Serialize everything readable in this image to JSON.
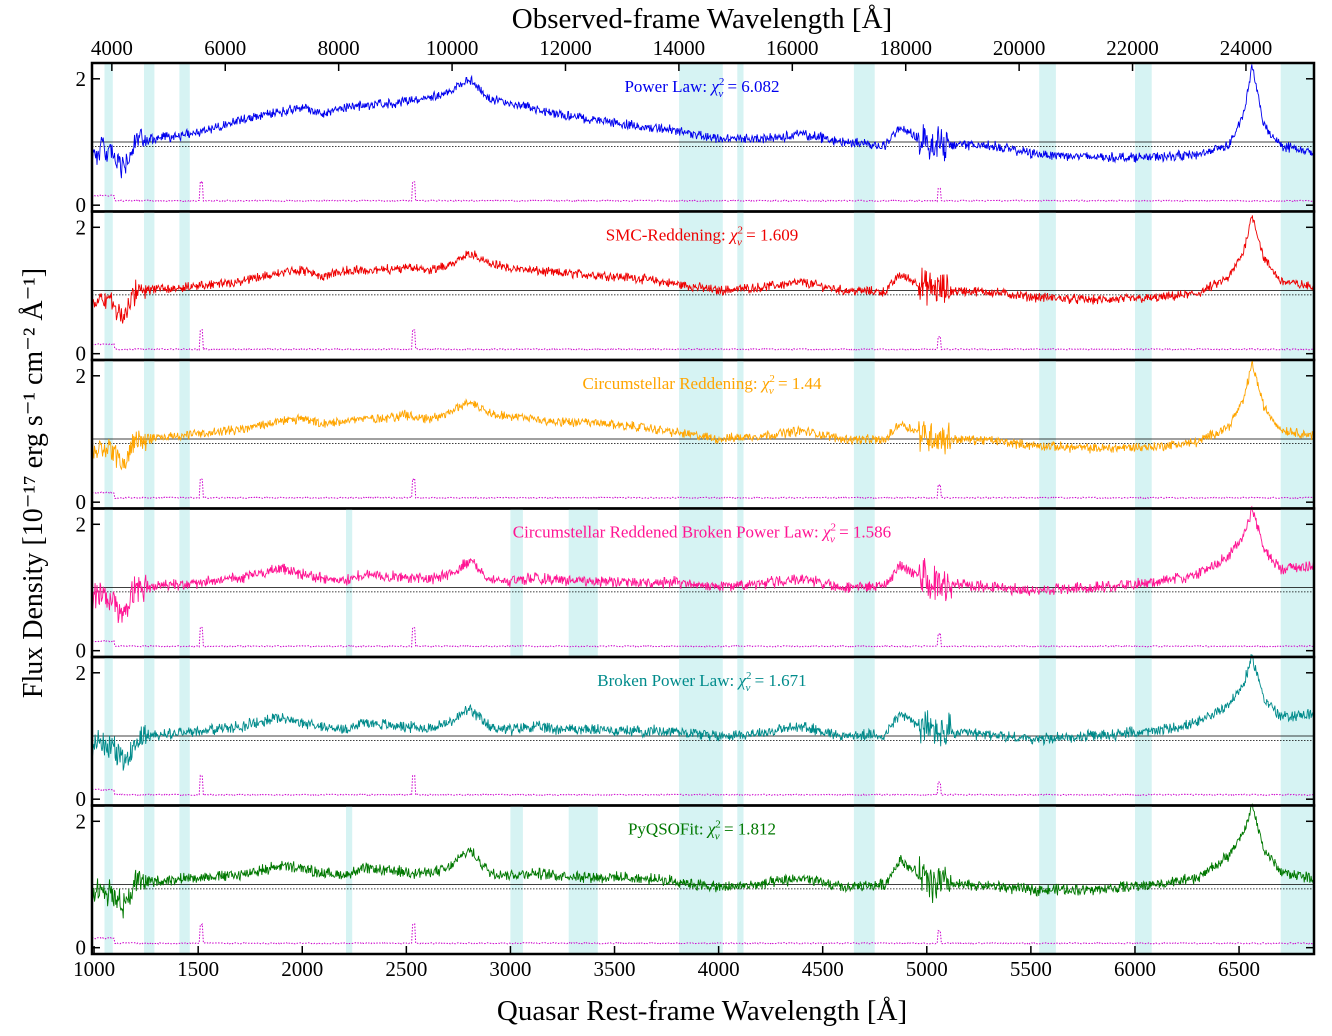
{
  "chart_data": {
    "type": "line",
    "title": "",
    "top_axis": {
      "label": "Observed-frame Wavelength [Å]",
      "range": [
        3650,
        25200
      ],
      "ticks": [
        4000,
        6000,
        8000,
        10000,
        12000,
        14000,
        16000,
        18000,
        20000,
        22000,
        24000
      ]
    },
    "bottom_axis": {
      "label": "Quasar Rest-frame Wavelength [Å]",
      "range": [
        990,
        6860
      ],
      "ticks": [
        1000,
        1500,
        2000,
        2500,
        3000,
        3500,
        4000,
        4500,
        5000,
        5500,
        6000,
        6500
      ]
    },
    "ylabel": "Flux Density [10⁻¹⁷ erg s⁻¹ cm⁻² Å⁻¹]",
    "ylim": [
      -0.1,
      2.25
    ],
    "yticks": [
      0,
      2
    ],
    "grid": false,
    "reference_levels": [
      1.0,
      0.93
    ],
    "excluded_ranges_sets": {
      "A": [
        [
          1050,
          1090
        ],
        [
          1240,
          1290
        ],
        [
          1410,
          1460
        ],
        [
          3810,
          4020
        ],
        [
          4090,
          4120
        ],
        [
          4650,
          4750
        ],
        [
          5540,
          5620
        ],
        [
          6000,
          6080
        ],
        [
          6700,
          6860
        ]
      ],
      "B": [
        [
          1050,
          1090
        ],
        [
          1240,
          1290
        ],
        [
          1410,
          1460
        ],
        [
          2210,
          2240
        ],
        [
          3000,
          3060
        ],
        [
          3280,
          3420
        ],
        [
          3810,
          4020
        ],
        [
          4090,
          4120
        ],
        [
          4650,
          4750
        ],
        [
          5540,
          5620
        ],
        [
          6000,
          6080
        ],
        [
          6700,
          6860
        ]
      ]
    },
    "common_feature_profile": {
      "rest_wavelength": [
        990,
        1040,
        1100,
        1140,
        1200,
        1300,
        1500,
        1700,
        1900,
        2000,
        2100,
        2200,
        2300,
        2400,
        2500,
        2600,
        2700,
        2800,
        2900,
        3000,
        3100,
        3200,
        3400,
        3600,
        3800,
        4000,
        4200,
        4400,
        4600,
        4800,
        4870,
        5000,
        5100,
        5300,
        5500,
        5800,
        6100,
        6300,
        6450,
        6520,
        6563,
        6620,
        6700,
        6860
      ],
      "flux_pl": [
        0.78,
        0.9,
        0.75,
        0.55,
        1.0,
        1.05,
        1.15,
        1.35,
        1.48,
        1.55,
        1.45,
        1.55,
        1.58,
        1.6,
        1.65,
        1.7,
        1.78,
        2.0,
        1.68,
        1.62,
        1.55,
        1.45,
        1.35,
        1.25,
        1.18,
        1.05,
        1.05,
        1.12,
        1.0,
        0.95,
        1.22,
        1.0,
        0.95,
        0.95,
        0.82,
        0.76,
        0.76,
        0.8,
        0.95,
        1.4,
        2.2,
        1.25,
        0.95,
        0.82
      ],
      "flux_reddened": [
        0.8,
        0.9,
        0.75,
        0.55,
        1.0,
        1.02,
        1.08,
        1.15,
        1.28,
        1.32,
        1.22,
        1.3,
        1.32,
        1.34,
        1.38,
        1.32,
        1.4,
        1.6,
        1.42,
        1.35,
        1.32,
        1.28,
        1.25,
        1.2,
        1.1,
        1.0,
        1.05,
        1.13,
        1.0,
        0.98,
        1.25,
        1.05,
        1.0,
        0.98,
        0.9,
        0.85,
        0.88,
        0.95,
        1.2,
        1.6,
        2.2,
        1.5,
        1.15,
        1.05
      ],
      "flux_broken": [
        0.8,
        0.9,
        0.75,
        0.55,
        1.0,
        1.02,
        1.08,
        1.15,
        1.3,
        1.2,
        1.15,
        1.1,
        1.22,
        1.18,
        1.15,
        1.12,
        1.2,
        1.42,
        1.15,
        1.1,
        1.15,
        1.12,
        1.1,
        1.08,
        1.08,
        1.0,
        1.05,
        1.15,
        1.0,
        1.02,
        1.35,
        1.1,
        1.05,
        1.02,
        0.95,
        1.0,
        1.08,
        1.2,
        1.5,
        1.8,
        2.25,
        1.6,
        1.3,
        1.35
      ],
      "flux_pyqsofit": [
        0.85,
        0.95,
        0.82,
        0.65,
        1.05,
        1.05,
        1.12,
        1.15,
        1.3,
        1.25,
        1.18,
        1.15,
        1.25,
        1.22,
        1.2,
        1.18,
        1.25,
        1.55,
        1.2,
        1.15,
        1.18,
        1.15,
        1.12,
        1.1,
        1.05,
        0.95,
        1.0,
        1.1,
        0.95,
        1.0,
        1.4,
        1.05,
        1.0,
        0.98,
        0.92,
        0.92,
        1.0,
        1.1,
        1.45,
        1.8,
        2.25,
        1.55,
        1.2,
        1.1
      ]
    },
    "series": [
      {
        "label": "Power Law: χ²ν = 6.082",
        "color": "#0000ee",
        "profile": "flux_pl",
        "noise": 0.06,
        "excluded_set": "A"
      },
      {
        "label": "SMC-Reddening: χ²ν = 1.609",
        "color": "#ee0000",
        "profile": "flux_reddened",
        "noise": 0.06,
        "excluded_set": "A"
      },
      {
        "label": "Circumstellar Reddening: χ²ν = 1.44",
        "color": "#ffa500",
        "profile": "flux_reddened",
        "noise": 0.06,
        "excluded_set": "A"
      },
      {
        "label": "Circumstellar Reddened Broken Power Law: χ²ν = 1.586",
        "color": "#ff1493",
        "profile": "flux_broken",
        "noise": 0.07,
        "excluded_set": "B"
      },
      {
        "label": "Broken Power Law: χ²ν = 1.671",
        "color": "#008b8b",
        "profile": "flux_broken",
        "noise": 0.07,
        "excluded_set": "A"
      },
      {
        "label": "PyQSOFit: χ²ν = 1.812",
        "color": "#007800",
        "profile": "flux_pyqsofit",
        "noise": 0.07,
        "excluded_set": "B"
      }
    ],
    "error_spectrum": {
      "color": "#cc00cc",
      "base_level": 0.07,
      "spikes": [
        [
          1515,
          0.3
        ],
        [
          2535,
          0.3
        ],
        [
          5060,
          0.2
        ]
      ]
    },
    "colors": {
      "excluded_band": "#d6f3f3",
      "reference_line": "#000000",
      "frame": "#000000"
    }
  }
}
